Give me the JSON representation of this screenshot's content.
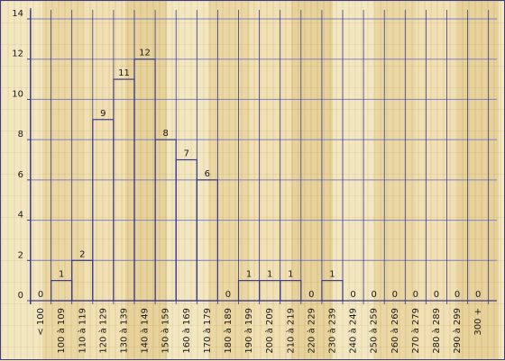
{
  "chart_data": {
    "type": "bar",
    "title": "",
    "xlabel": "",
    "ylabel": "",
    "ylim": [
      0,
      14
    ],
    "yticks": [
      0,
      2,
      4,
      6,
      8,
      10,
      12,
      14
    ],
    "grid": true,
    "categories": [
      "< 100",
      "100 à 109",
      "110 à 119",
      "120 à 129",
      "130 à 139",
      "140 à 149",
      "150 à 159",
      "160 à 169",
      "170 à 179",
      "180 à 189",
      "190 à 199",
      "200 à 209",
      "210 à 219",
      "220 à 229",
      "230 à 239",
      "240 à 249",
      "250 à 259",
      "260 à 269",
      "270 à 279",
      "280 à 289",
      "290 à 299",
      "300 +"
    ],
    "values": [
      0,
      1,
      2,
      9,
      11,
      12,
      8,
      7,
      6,
      0,
      1,
      1,
      1,
      0,
      1,
      0,
      0,
      0,
      0,
      0,
      0,
      0
    ],
    "colors": {
      "line": "#3b3b8a",
      "grid": "#7f7fc4",
      "frame": "#3b3b8a"
    }
  }
}
